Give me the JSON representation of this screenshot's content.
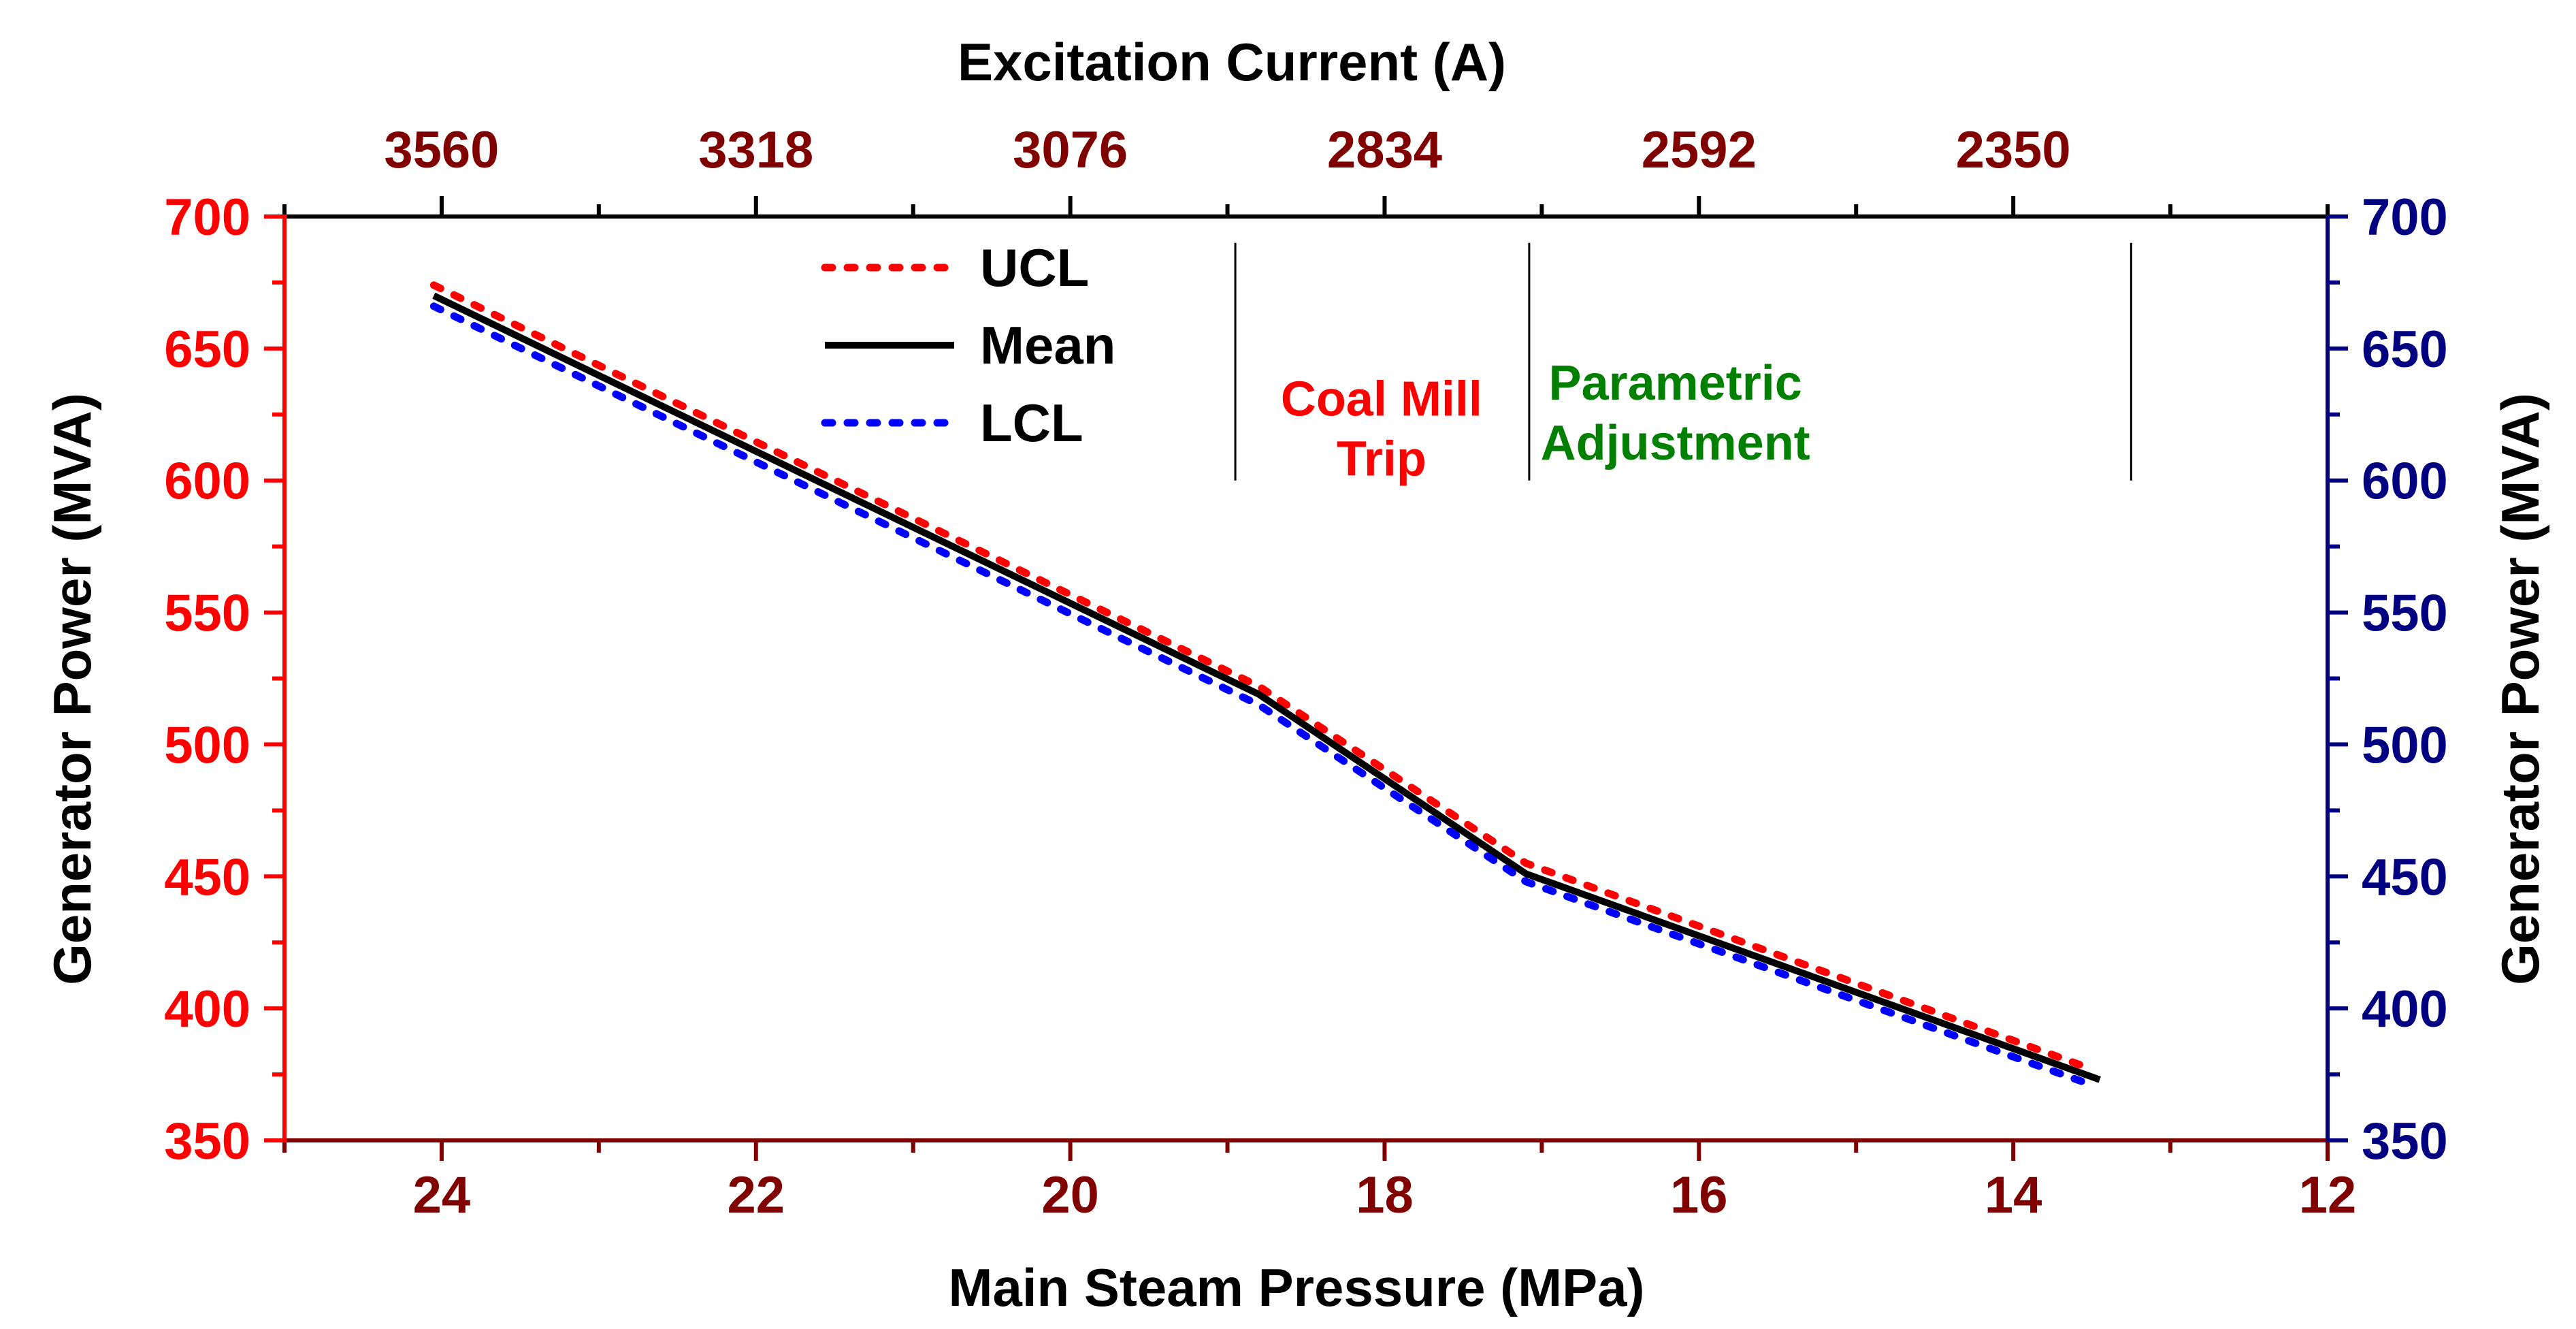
{
  "chart_data": {
    "type": "line",
    "title_top": "Excitation Current (A)",
    "xlabel": "Main Steam Pressure (MPa)",
    "ylabel_left": "Generator Power (MVA)",
    "ylabel_right": "Generator Power (MVA)",
    "xlim": [
      25,
      12
    ],
    "ylim": [
      350,
      700
    ],
    "x_ticks": [
      24,
      22,
      20,
      18,
      16,
      14,
      12
    ],
    "x_tick_labels": [
      "24",
      "22",
      "20",
      "18",
      "16",
      "14",
      "12"
    ],
    "y_ticks": [
      350,
      400,
      450,
      500,
      550,
      600,
      650,
      700
    ],
    "y_tick_labels_left": [
      "350",
      "400",
      "450",
      "500",
      "550",
      "600",
      "650",
      "700"
    ],
    "y_tick_labels_right": [
      "350",
      "400",
      "450",
      "500",
      "550",
      "600",
      "650",
      "700"
    ],
    "top_ticks": [
      24,
      22,
      20,
      18,
      16,
      14
    ],
    "top_tick_labels": [
      "3560",
      "3318",
      "3076",
      "2834",
      "2592",
      "2350"
    ],
    "series": [
      {
        "name": "UCL",
        "style": "dotted",
        "color": "#ff0000",
        "x": [
          24.05,
          18.8,
          17.1,
          13.5
        ],
        "y": [
          674,
          522,
          455,
          377
        ]
      },
      {
        "name": "Mean",
        "style": "solid",
        "color": "#000000",
        "x": [
          24.05,
          18.8,
          17.1,
          13.45
        ],
        "y": [
          670,
          519,
          451,
          373
        ]
      },
      {
        "name": "LCL",
        "style": "dotted",
        "color": "#0000ff",
        "x": [
          24.05,
          18.8,
          17.1,
          13.5
        ],
        "y": [
          666,
          515,
          448,
          371
        ]
      }
    ],
    "region_lines_x": [
      18.95,
      17.08,
      13.25
    ],
    "annotations": [
      {
        "text_lines": [
          "Coal Mill",
          "Trip"
        ],
        "x": 18.02,
        "y": 622,
        "color": "#ff0000"
      },
      {
        "text_lines": [
          "Parametric",
          "Adjustment"
        ],
        "x": 16.15,
        "y": 628,
        "color": "#008000"
      }
    ],
    "legend_placement": "top-left",
    "colors": {
      "left_axis": "#ff0000",
      "right_axis": "#000080",
      "bottom_axis": "#800000",
      "top_tick_labels": "#800000",
      "axis_titles": "#000000"
    }
  }
}
